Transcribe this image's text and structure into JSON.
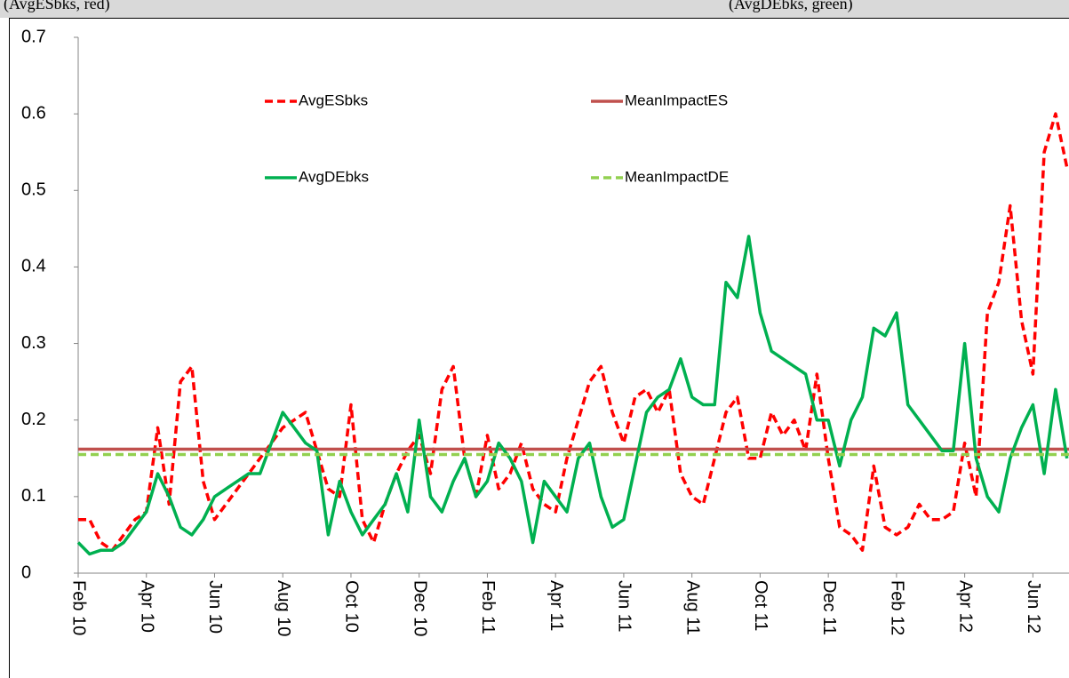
{
  "caption": [
    "(AvgESbks, red)",
    "(AvgDEbks, green)"
  ],
  "chart_data": {
    "type": "line",
    "categories": [
      "Feb 10",
      null,
      null,
      null,
      null,
      null,
      "Apr 10",
      null,
      null,
      null,
      null,
      null,
      "Jun 10",
      null,
      null,
      null,
      null,
      null,
      "Aug 10",
      null,
      null,
      null,
      null,
      null,
      "Oct 10",
      null,
      null,
      null,
      null,
      null,
      "Dec 10",
      null,
      null,
      null,
      null,
      null,
      "Feb 11",
      null,
      null,
      null,
      null,
      null,
      "Apr 11",
      null,
      null,
      null,
      null,
      null,
      "Jun 11",
      null,
      null,
      null,
      null,
      null,
      "Aug 11",
      null,
      null,
      null,
      null,
      null,
      "Oct 11",
      null,
      null,
      null,
      null,
      null,
      "Dec 11",
      null,
      null,
      null,
      null,
      null,
      "Feb 12",
      null,
      null,
      null,
      null,
      null,
      "Apr 12",
      null,
      null,
      null,
      null,
      null,
      "Jun 12",
      null,
      null,
      null
    ],
    "series": [
      {
        "name": "AvgESbks",
        "color": "#ff0000",
        "dashed": true,
        "values": [
          0.07,
          0.07,
          0.04,
          0.03,
          0.05,
          0.07,
          0.08,
          0.19,
          0.09,
          0.25,
          0.27,
          0.12,
          0.07,
          0.09,
          0.11,
          0.13,
          0.15,
          0.17,
          0.19,
          0.2,
          0.21,
          0.16,
          0.11,
          0.1,
          0.22,
          0.07,
          0.04,
          0.09,
          0.13,
          0.16,
          0.18,
          0.13,
          0.24,
          0.27,
          0.15,
          0.1,
          0.18,
          0.11,
          0.13,
          0.17,
          0.11,
          0.09,
          0.08,
          0.15,
          0.2,
          0.25,
          0.27,
          0.21,
          0.17,
          0.23,
          0.24,
          0.21,
          0.24,
          0.13,
          0.1,
          0.09,
          0.15,
          0.21,
          0.23,
          0.15,
          0.15,
          0.21,
          0.18,
          0.2,
          0.16,
          0.26,
          0.15,
          0.06,
          0.05,
          0.03,
          0.14,
          0.06,
          0.05,
          0.06,
          0.09,
          0.07,
          0.07,
          0.08,
          0.17,
          0.1,
          0.34,
          0.38,
          0.48,
          0.33,
          0.26,
          0.55,
          0.6,
          0.53
        ]
      },
      {
        "name": "MeanImpactES",
        "color": "#c0504d",
        "dashed": false,
        "value": 0.162
      },
      {
        "name": "AvgDEbks",
        "color": "#00b050",
        "dashed": false,
        "values": [
          0.04,
          0.025,
          0.03,
          0.03,
          0.04,
          0.06,
          0.08,
          0.13,
          0.1,
          0.06,
          0.05,
          0.07,
          0.1,
          0.11,
          0.12,
          0.13,
          0.13,
          0.17,
          0.21,
          0.19,
          0.17,
          0.16,
          0.05,
          0.12,
          0.08,
          0.05,
          0.07,
          0.09,
          0.13,
          0.08,
          0.2,
          0.1,
          0.08,
          0.12,
          0.15,
          0.1,
          0.12,
          0.17,
          0.15,
          0.12,
          0.04,
          0.12,
          0.1,
          0.08,
          0.15,
          0.17,
          0.1,
          0.06,
          0.07,
          0.14,
          0.21,
          0.23,
          0.24,
          0.28,
          0.23,
          0.22,
          0.22,
          0.38,
          0.36,
          0.44,
          0.34,
          0.29,
          0.28,
          0.27,
          0.26,
          0.2,
          0.2,
          0.14,
          0.2,
          0.23,
          0.32,
          0.31,
          0.34,
          0.22,
          0.2,
          0.18,
          0.16,
          0.16,
          0.3,
          0.15,
          0.1,
          0.08,
          0.15,
          0.19,
          0.22,
          0.13,
          0.24,
          0.15
        ]
      },
      {
        "name": "MeanImpactDE",
        "color": "#92d050",
        "dashed": true,
        "value": 0.155
      }
    ],
    "ylim": [
      0,
      0.7
    ],
    "yticks": [
      0,
      0.1,
      0.2,
      0.3,
      0.4,
      0.5,
      0.6,
      0.7
    ],
    "grid": false,
    "legend": "top"
  }
}
